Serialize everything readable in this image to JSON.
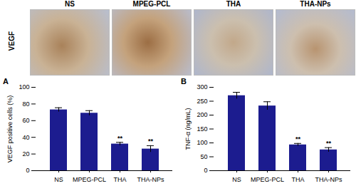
{
  "image_row": {
    "label": "VEGF",
    "panels": [
      "NS",
      "MPEG-PCL",
      "THA",
      "THA-NPs"
    ]
  },
  "chart_data": [
    {
      "type": "bar",
      "title": "A",
      "y_label": "VEGF positive cells (%)",
      "categories": [
        "NS",
        "MPEG-PCL",
        "THA",
        "THA-NPs"
      ],
      "values": [
        73,
        69,
        32,
        26
      ],
      "errors": [
        2.5,
        3,
        2,
        4
      ],
      "annotations": [
        {
          "category": "THA",
          "text": "**"
        },
        {
          "category": "THA-NPs",
          "text": "**"
        }
      ],
      "color": "#1c1c8f",
      "ylim": [
        0,
        100
      ],
      "yticks": [
        0,
        20,
        40,
        60,
        80,
        100
      ],
      "grid": false
    },
    {
      "type": "bar",
      "title": "B",
      "y_label": "TNF-α (ng/mL)",
      "categories": [
        "NS",
        "MPEG-PCL",
        "THA",
        "THA-NPs"
      ],
      "values": [
        270,
        233,
        93,
        75
      ],
      "errors": [
        12,
        15,
        5,
        8
      ],
      "annotations": [
        {
          "category": "THA",
          "text": "**"
        },
        {
          "category": "THA-NPs",
          "text": "**"
        }
      ],
      "color": "#1c1c8f",
      "ylim": [
        0,
        300
      ],
      "yticks": [
        0,
        50,
        100,
        150,
        200,
        250,
        300
      ],
      "grid": false
    }
  ]
}
